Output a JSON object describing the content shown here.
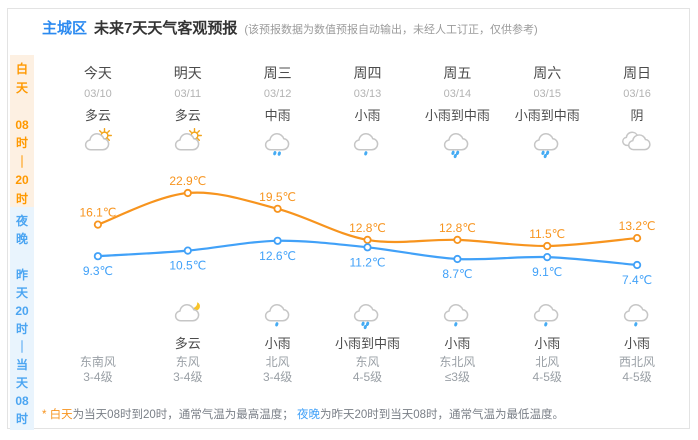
{
  "header": {
    "region": "主城区",
    "title": "未来7天天气客观预报",
    "subtitle": "(该预报数据为数值预报自动输出，未经人工订正，仅供参考)"
  },
  "sidebar": {
    "day": {
      "label_lines": [
        "白",
        "天",
        "",
        "08",
        "时",
        "｜",
        "20",
        "时"
      ]
    },
    "night": {
      "label_lines": [
        "夜",
        "晚",
        "",
        "昨",
        "天",
        "20",
        "时",
        "｜",
        "当",
        "天",
        "08",
        "时"
      ]
    }
  },
  "columns": [
    {
      "day_name": "今天",
      "date": "03/10",
      "day_condition": "多云",
      "day_icon": "cloudy-sun",
      "night_icon": "",
      "night_condition": "",
      "wind_direction": "东南风",
      "wind_level": "3-4级"
    },
    {
      "day_name": "明天",
      "date": "03/11",
      "day_condition": "多云",
      "day_icon": "cloudy-sun",
      "night_icon": "cloudy-moon",
      "night_condition": "多云",
      "wind_direction": "东风",
      "wind_level": "3-4级"
    },
    {
      "day_name": "周三",
      "date": "03/12",
      "day_condition": "中雨",
      "day_icon": "rain-2",
      "night_icon": "rain-1",
      "night_condition": "小雨",
      "wind_direction": "北风",
      "wind_level": "3-4级"
    },
    {
      "day_name": "周四",
      "date": "03/13",
      "day_condition": "小雨",
      "day_icon": "rain-1",
      "night_icon": "rain-3",
      "night_condition": "小雨到中雨",
      "wind_direction": "东风",
      "wind_level": "4-5级"
    },
    {
      "day_name": "周五",
      "date": "03/14",
      "day_condition": "小雨到中雨",
      "day_icon": "rain-3",
      "night_icon": "rain-1",
      "night_condition": "小雨",
      "wind_direction": "东北风",
      "wind_level": "≤3级"
    },
    {
      "day_name": "周六",
      "date": "03/15",
      "day_condition": "小雨到中雨",
      "day_icon": "rain-3",
      "night_icon": "rain-1",
      "night_condition": "小雨",
      "wind_direction": "北风",
      "wind_level": "4-5级"
    },
    {
      "day_name": "周日",
      "date": "03/16",
      "day_condition": "阴",
      "day_icon": "overcast",
      "night_icon": "rain-1",
      "night_condition": "小雨",
      "wind_direction": "西北风",
      "wind_level": "4-5级"
    }
  ],
  "chart_data": {
    "type": "line",
    "categories": [
      "今天",
      "明天",
      "周三",
      "周四",
      "周五",
      "周六",
      "周日"
    ],
    "series": [
      {
        "name": "白天最高气温",
        "color": "#f7941e",
        "label_position": "above",
        "values": [
          16.1,
          22.9,
          19.5,
          12.8,
          12.8,
          11.5,
          13.2
        ]
      },
      {
        "name": "夜晚最低气温",
        "color": "#41a1f8",
        "label_position": "below",
        "values": [
          9.3,
          10.5,
          12.6,
          11.2,
          8.7,
          9.1,
          7.4
        ]
      }
    ],
    "unit": "℃",
    "y_range": [
      7.4,
      22.9
    ],
    "grid": false,
    "legend": "none"
  },
  "footer": {
    "segments": [
      {
        "text": "* ",
        "color": "#f7941e"
      },
      {
        "text": "白天",
        "color": "#f7941e"
      },
      {
        "text": "为当天08时到20时，通常气温为最高温度； ",
        "color": "#7a7f87"
      },
      {
        "text": "夜晚",
        "color": "#41a1f8"
      },
      {
        "text": "为昨天20时到当天08时，通常气温为最低温度。",
        "color": "#7a7f87"
      }
    ]
  },
  "colors": {
    "title_blue": "#2b8af0",
    "accent_orange": "#f7941e",
    "accent_blue": "#41a1f8",
    "sidebar_day_bg": "#fdf0e2",
    "sidebar_night_bg": "#e9f4fd",
    "cloud_gray": "#c6c6c6",
    "sun_yellow": "#f2a51d",
    "moon_yellow": "#f8c42a",
    "drop_blue": "#45abf3"
  }
}
